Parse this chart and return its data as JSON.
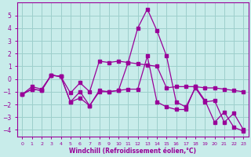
{
  "xlabel": "Windchill (Refroidissement éolien,°C)",
  "xlim": [
    -0.5,
    23.5
  ],
  "ylim": [
    -4.5,
    6.0
  ],
  "yticks": [
    -4,
    -3,
    -2,
    -1,
    0,
    1,
    2,
    3,
    4,
    5
  ],
  "xticks": [
    0,
    1,
    2,
    3,
    4,
    5,
    6,
    7,
    8,
    9,
    10,
    11,
    12,
    13,
    14,
    15,
    16,
    17,
    18,
    19,
    20,
    21,
    22,
    23
  ],
  "bg_color": "#c8ecea",
  "grid_color": "#9dcfcc",
  "line_color": "#990099",
  "line1_x": [
    0,
    1,
    2,
    3,
    4,
    5,
    6,
    7,
    8,
    9,
    10,
    11,
    12,
    13,
    14,
    15,
    16,
    17,
    18,
    19,
    20,
    21,
    22,
    23
  ],
  "line1_y": [
    -1.2,
    -0.6,
    -0.8,
    0.3,
    0.2,
    -1.8,
    -1.0,
    -2.1,
    -0.9,
    -1.0,
    -0.9,
    1.3,
    4.0,
    5.5,
    3.8,
    1.8,
    -1.8,
    -2.2,
    -0.7,
    -1.8,
    -1.7,
    -3.4,
    -2.7,
    -4.0
  ],
  "line2_x": [
    0,
    1,
    2,
    3,
    4,
    5,
    6,
    7,
    8,
    9,
    10,
    11,
    12,
    13,
    14,
    15,
    16,
    17,
    18,
    19,
    20,
    21,
    22,
    23
  ],
  "line2_y": [
    -1.2,
    -0.8,
    -0.9,
    0.3,
    0.2,
    -1.8,
    -1.5,
    -2.1,
    -1.0,
    -1.0,
    -0.9,
    -0.8,
    -0.8,
    1.8,
    -1.8,
    -2.2,
    -2.4,
    -2.4,
    -0.6,
    -1.7,
    -3.4,
    -2.6,
    -3.8,
    -4.1
  ],
  "line3_x": [
    0,
    1,
    2,
    3,
    4,
    5,
    6,
    7,
    8,
    9,
    10,
    11,
    12,
    13,
    14,
    15,
    16,
    17,
    18,
    19,
    20,
    21,
    22,
    23
  ],
  "line3_y": [
    -1.2,
    -0.8,
    -0.9,
    0.3,
    0.2,
    -1.1,
    -0.3,
    -1.0,
    1.4,
    1.3,
    1.4,
    1.3,
    1.2,
    1.1,
    1.0,
    -0.7,
    -0.6,
    -0.6,
    -0.6,
    -0.7,
    -0.7,
    -0.8,
    -0.9,
    -1.0
  ]
}
